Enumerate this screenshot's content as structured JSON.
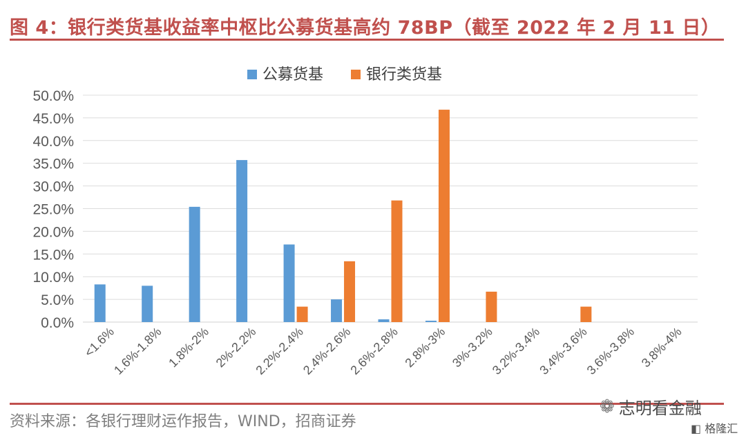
{
  "header": {
    "title": "图 4：银行类货基收益率中枢比公募货基高约 78BP（截至 2022 年 2 月 11 日）"
  },
  "footer": {
    "source": "资料来源：各银行理财运作报告，WIND，招商证券",
    "watermark": "志明看金融",
    "badge": "格隆汇"
  },
  "chart_data": {
    "type": "bar",
    "categories": [
      "<1.6%",
      "1.6%-1.8%",
      "1.8%-2%",
      "2%-2.2%",
      "2.2%-2.4%",
      "2.4%-2.6%",
      "2.6%-2.8%",
      "2.8%-3%",
      "3%-3.2%",
      "3.2%-3.4%",
      "3.4%-3.6%",
      "3.6%-3.8%",
      "3.8%-4%"
    ],
    "series": [
      {
        "name": "公募货基",
        "color": "#5b9bd5",
        "values": [
          8.3,
          8.0,
          25.4,
          35.7,
          17.1,
          5.0,
          0.6,
          0.3,
          0.0,
          0.0,
          0.0,
          0.0,
          0.0
        ]
      },
      {
        "name": "银行类货基",
        "color": "#ed7d31",
        "values": [
          0.0,
          0.0,
          0.0,
          0.0,
          3.4,
          13.4,
          26.8,
          46.8,
          6.7,
          0.0,
          3.4,
          0.0,
          0.0
        ]
      }
    ],
    "yticks": [
      "0.0%",
      "5.0%",
      "10.0%",
      "15.0%",
      "20.0%",
      "25.0%",
      "30.0%",
      "35.0%",
      "40.0%",
      "45.0%",
      "50.0%"
    ],
    "ylim": [
      0,
      50
    ],
    "grid": true,
    "legend": "top-center"
  }
}
